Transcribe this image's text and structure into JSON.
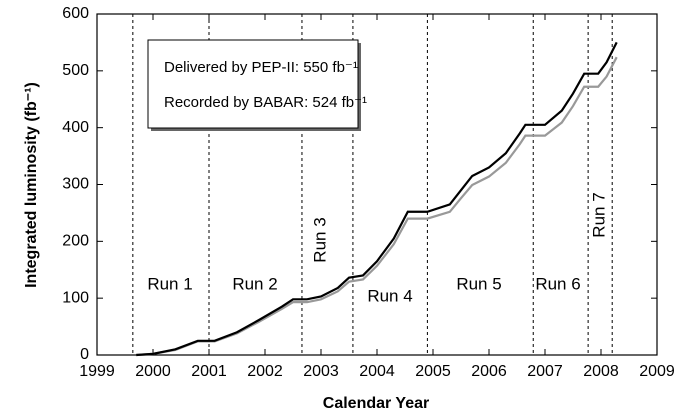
{
  "chart_data": {
    "type": "line",
    "xlabel": "Calendar Year",
    "ylabel": "Integrated luminosity (fb⁻¹)",
    "x": [
      1999.7,
      2000.0,
      2000.4,
      2000.8,
      2001.1,
      2001.5,
      2001.9,
      2002.3,
      2002.5,
      2002.75,
      2003.0,
      2003.3,
      2003.5,
      2003.75,
      2004.0,
      2004.3,
      2004.55,
      2004.9,
      2005.3,
      2005.5,
      2005.7,
      2006.0,
      2006.3,
      2006.55,
      2006.65,
      2007.0,
      2007.3,
      2007.5,
      2007.7,
      2007.95,
      2008.1,
      2008.28
    ],
    "series": [
      {
        "name": "Delivered by PEP-II: 550 fb⁻¹",
        "color": "#000000",
        "values": [
          0,
          2,
          10,
          25,
          25,
          40,
          62,
          85,
          98,
          98,
          103,
          118,
          136,
          140,
          165,
          205,
          252,
          252,
          265,
          290,
          315,
          330,
          355,
          390,
          405,
          405,
          430,
          460,
          495,
          495,
          515,
          550
        ]
      },
      {
        "name": "Recorded by BABAR: 524 fb⁻¹",
        "color": "#999999",
        "values": [
          0,
          2,
          9,
          24,
          24,
          38,
          59,
          81,
          93,
          93,
          98,
          112,
          129,
          133,
          157,
          195,
          240,
          240,
          252,
          276,
          299,
          314,
          338,
          371,
          386,
          386,
          409,
          438,
          472,
          472,
          490,
          524
        ]
      }
    ],
    "vlines": [
      1999.64,
      2001.0,
      2002.66,
      2003.57,
      2004.9,
      2006.79,
      2007.77,
      2008.2
    ],
    "annotations": [
      "Run 1",
      "Run 2",
      "Run 3",
      "Run 4",
      "Run 5",
      "Run 6",
      "Run 7"
    ],
    "xlim": [
      1999,
      2009
    ],
    "xticks": [
      1999,
      2000,
      2001,
      2002,
      2003,
      2004,
      2005,
      2006,
      2007,
      2008,
      2009
    ],
    "ylim": [
      0,
      600
    ],
    "yticks": [
      0,
      100,
      200,
      300,
      400,
      500,
      600
    ]
  }
}
